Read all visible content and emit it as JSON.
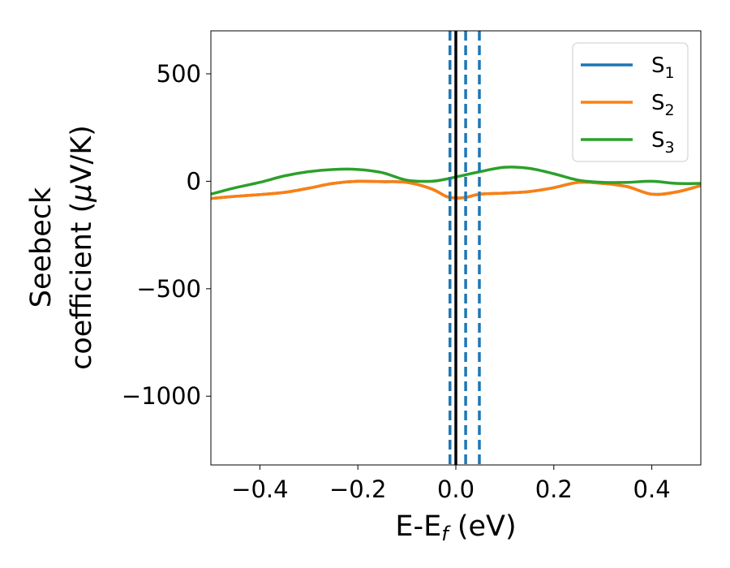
{
  "chart_data": {
    "type": "line",
    "title": "",
    "xlabel_main": "E-E",
    "xlabel_sub": "f",
    "xlabel_unit": " (eV)",
    "ylabel_line1": "Seebeck",
    "ylabel_line2_text": "coefficient  (",
    "ylabel_mu": "μ",
    "ylabel_unit": "V/K)",
    "xlim": [
      -0.5,
      0.5
    ],
    "ylim": [
      -1320,
      700
    ],
    "xticks": [
      -0.4,
      -0.2,
      0.0,
      0.2,
      0.4
    ],
    "xtick_labels": [
      "−0.4",
      "−0.2",
      "0.0",
      "0.2",
      "0.4"
    ],
    "yticks": [
      500,
      0,
      -500,
      -1000
    ],
    "ytick_labels": [
      "500",
      "0",
      "−500",
      "−1000"
    ],
    "grid": false,
    "legend_position": "top-right",
    "vertical_lines": [
      {
        "x": 0.0,
        "style": "solid",
        "color": "#000000"
      },
      {
        "x": -0.012,
        "style": "dashed",
        "color": "#1f77b4"
      },
      {
        "x": 0.02,
        "style": "dashed",
        "color": "#1f77b4"
      },
      {
        "x": 0.048,
        "style": "dashed",
        "color": "#1f77b4"
      }
    ],
    "x": [
      -0.5,
      -0.45,
      -0.4,
      -0.35,
      -0.3,
      -0.25,
      -0.2,
      -0.15,
      -0.1,
      -0.05,
      -0.02,
      0.0,
      0.02,
      0.05,
      0.1,
      0.15,
      0.2,
      0.25,
      0.3,
      0.35,
      0.4,
      0.45,
      0.5
    ],
    "series": [
      {
        "name": "S",
        "sub": "1",
        "color": "#1f77b4",
        "values": [
          -80,
          -70,
          -62,
          -52,
          -32,
          -10,
          0,
          -2,
          -5,
          -35,
          -70,
          -78,
          -75,
          -60,
          -55,
          -48,
          -30,
          -5,
          -10,
          -25,
          -60,
          -50,
          -20
        ]
      },
      {
        "name": "S",
        "sub": "2",
        "color": "#ff7f0e",
        "values": [
          -80,
          -70,
          -62,
          -52,
          -32,
          -10,
          0,
          -2,
          -5,
          -35,
          -70,
          -78,
          -75,
          -60,
          -55,
          -48,
          -30,
          -5,
          -10,
          -25,
          -60,
          -50,
          -20
        ]
      },
      {
        "name": "S",
        "sub": "3",
        "color": "#2ca02c",
        "values": [
          -60,
          -30,
          -5,
          25,
          45,
          55,
          55,
          40,
          5,
          0,
          10,
          20,
          30,
          45,
          65,
          60,
          35,
          5,
          -5,
          -5,
          0,
          -10,
          -10
        ]
      }
    ]
  }
}
